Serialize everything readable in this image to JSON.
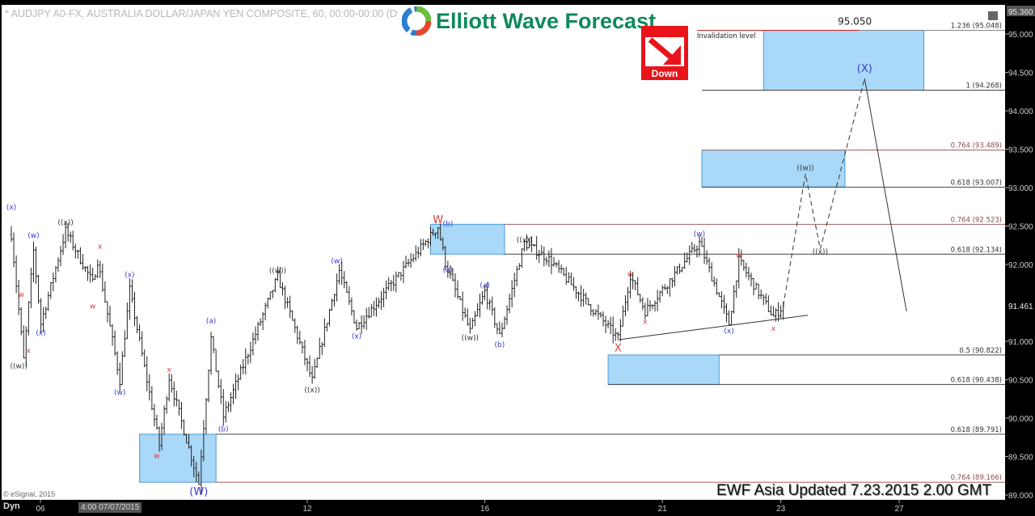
{
  "window": {
    "title": "* AUDJPY A0-FX, AUSTRALIA DOLLAR/JAPAN YEN COMPOSITE, 60, 00:00-00:00 (Dy",
    "logo_text": "Elliott Wave Forecast",
    "down_badge": "Down",
    "updated_text": "EWF Asia Updated 7.23.2015 2.00 GMT",
    "copyright": "© eSignal, 2015",
    "dyn_label": "Dyn",
    "cursor_date": "4:00 07/07/2015"
  },
  "colors": {
    "blue_label": "#3a3ad0",
    "red_label": "#e03a3a",
    "grey_label": "#333333",
    "box_fill": "#aad8f8",
    "box_border": "#4a9ad8",
    "fib_dark": "#444444",
    "fib_brown": "#a06060",
    "invalidation": "#d02020"
  },
  "chart_data": {
    "type": "ohlc-bar",
    "symbol": "AUDJPY",
    "interval": "60",
    "ylim": [
      89.0,
      95.36
    ],
    "y_ticks": [
      "95.000",
      "94.500",
      "94.000",
      "93.500",
      "93.000",
      "92.500",
      "92.000",
      "91.000",
      "90.500",
      "90.000",
      "89.500",
      "89.000"
    ],
    "y_tick_values": [
      95.0,
      94.5,
      94.0,
      93.5,
      93.0,
      92.5,
      92.0,
      91.0,
      90.5,
      90.0,
      89.5,
      89.0
    ],
    "price_tags": [
      {
        "label": "95.360",
        "value": 95.36
      },
      {
        "label": "91.461",
        "value": 91.461
      }
    ],
    "x_ticks": [
      {
        "label": "06",
        "t": "2015-07-06 12:00"
      },
      {
        "label": "12",
        "t": "2015-07-13 00:00"
      },
      {
        "label": "16",
        "t": "2015-07-16 00:00"
      },
      {
        "label": "21",
        "t": "2015-07-21 00:00"
      },
      {
        "label": "23",
        "t": "2015-07-23 00:00"
      },
      {
        "label": "27",
        "t": "2015-07-27 00:00"
      }
    ],
    "price_swings": [
      [
        "2015-07-06 00:00",
        92.39
      ],
      [
        "2015-07-06 05:00",
        90.76
      ],
      [
        "2015-07-06 09:00",
        92.18
      ],
      [
        "2015-07-06 12:00",
        91.23
      ],
      [
        "2015-07-06 22:00",
        92.44
      ],
      [
        "2015-07-07 09:00",
        91.76
      ],
      [
        "2015-07-07 11:00",
        92.05
      ],
      [
        "2015-07-07 20:00",
        90.49
      ],
      [
        "2015-07-08 00:00",
        91.67
      ],
      [
        "2015-07-08 12:00",
        89.65
      ],
      [
        "2015-07-08 16:00",
        90.53
      ],
      [
        "2015-07-09 04:00",
        89.15
      ],
      [
        "2015-07-09 09:00",
        91.04
      ],
      [
        "2015-07-09 14:00",
        90.02
      ],
      [
        "2015-07-10 12:00",
        91.84
      ],
      [
        "2015-07-13 02:00",
        90.49
      ],
      [
        "2015-07-13 13:00",
        91.92
      ],
      [
        "2015-07-13 20:00",
        91.18
      ],
      [
        "2015-07-15 05:00",
        92.49
      ],
      [
        "2015-07-15 08:00",
        92.02
      ],
      [
        "2015-07-15 18:00",
        91.13
      ],
      [
        "2015-07-16 00:00",
        91.65
      ],
      [
        "2015-07-16 06:00",
        91.07
      ],
      [
        "2015-07-16 16:00",
        92.28
      ],
      [
        "2015-07-17 02:00",
        92.07
      ],
      [
        "2015-07-20 06:00",
        91.04
      ],
      [
        "2015-07-20 11:00",
        91.86
      ],
      [
        "2015-07-20 17:00",
        91.39
      ],
      [
        "2015-07-21 15:00",
        92.28
      ],
      [
        "2015-07-22 03:00",
        91.23
      ],
      [
        "2015-07-22 07:00",
        92.05
      ],
      [
        "2015-07-22 21:00",
        91.32
      ],
      [
        "2015-07-23 01:00",
        91.46
      ]
    ],
    "projection_path": {
      "dashed": [
        [
          "2015-07-23 01:00",
          91.46
        ],
        [
          "2015-07-23 10:00",
          93.18
        ],
        [
          "2015-07-23 16:00",
          92.2
        ],
        [
          "2015-07-24 10:00",
          94.42
        ]
      ],
      "solid": [
        [
          "2015-07-24 10:00",
          94.42
        ],
        [
          "2015-07-27 03:00",
          91.39
        ]
      ]
    },
    "trend_line": [
      [
        "2015-07-20 06:00",
        91.02
      ],
      [
        "2015-07-23 11:00",
        91.34
      ]
    ],
    "fib_levels": [
      {
        "label": "1.236 (95.048)",
        "value": 95.048,
        "from": "2015-07-21 14:00",
        "color": "invalidation"
      },
      {
        "label": "1 (94.268)",
        "value": 94.268,
        "from": "2015-07-21 16:00",
        "color": "fib_dark"
      },
      {
        "label": "0.764 (93.489)",
        "value": 93.489,
        "from": "2015-07-21 16:00",
        "color": "fib_brown"
      },
      {
        "label": "0.618 (93.007)",
        "value": 93.007,
        "from": "2015-07-21 16:00",
        "color": "fib_dark"
      },
      {
        "label": "0.764 (92.523)",
        "value": 92.523,
        "from": "2015-07-16 08:00",
        "color": "fib_brown"
      },
      {
        "label": "0.618 (92.134)",
        "value": 92.134,
        "from": "2015-07-16 08:00",
        "color": "fib_dark"
      },
      {
        "label": "0.5 (90.822)",
        "value": 90.822,
        "from": "2015-07-21 23:00",
        "color": "fib_dark"
      },
      {
        "label": "0.618 (90.438)",
        "value": 90.438,
        "from": "2015-07-20 02:00",
        "color": "fib_dark"
      },
      {
        "label": "0.618 (89.791)",
        "value": 89.791,
        "from": "2015-07-09 11:00",
        "color": "fib_dark"
      },
      {
        "label": "0.764 (89.166)",
        "value": 89.166,
        "from": "2015-07-09 11:00",
        "color": "fib_brown"
      }
    ],
    "target_boxes": [
      {
        "from": "2015-07-08 04:00",
        "to": "2015-07-09 11:00",
        "low": 89.166,
        "high": 89.791
      },
      {
        "from": "2015-07-15 02:00",
        "to": "2015-07-16 08:00",
        "low": 92.134,
        "high": 92.523
      },
      {
        "from": "2015-07-20 02:00",
        "to": "2015-07-21 23:00",
        "low": 90.438,
        "high": 90.822
      },
      {
        "from": "2015-07-21 16:00",
        "to": "2015-07-24 02:00",
        "low": 93.007,
        "high": 93.489
      },
      {
        "from": "2015-07-22 17:00",
        "to": "2015-07-27 10:00",
        "low": 94.268,
        "high": 95.048
      }
    ],
    "annotations": [
      {
        "text": "Invalidation level",
        "t": "2015-07-21 14:00",
        "price": 95.04,
        "kind": "note"
      },
      {
        "text": "95.050",
        "t": "2015-07-24 06:00",
        "price": 95.12,
        "kind": "value"
      }
    ],
    "wave_labels": [
      {
        "text": "(x)",
        "t": "2015-07-06 00:00",
        "price": 92.76,
        "c": "blue_label"
      },
      {
        "text": "(w)",
        "t": "2015-07-06 09:00",
        "price": 92.39,
        "c": "blue_label"
      },
      {
        "text": "((x))",
        "t": "2015-07-06 22:00",
        "price": 92.56,
        "c": "grey_label"
      },
      {
        "text": "w",
        "t": "2015-07-06 04:00",
        "price": 91.62,
        "c": "red_label"
      },
      {
        "text": "x",
        "t": "2015-07-06 07:00",
        "price": 90.89,
        "c": "red_label"
      },
      {
        "text": "(x)",
        "t": "2015-07-06 12:00",
        "price": 91.12,
        "c": "blue_label"
      },
      {
        "text": "((w))",
        "t": "2015-07-06 03:00",
        "price": 90.69,
        "c": "grey_label"
      },
      {
        "text": "x",
        "t": "2015-07-07 12:00",
        "price": 92.25,
        "c": "red_label"
      },
      {
        "text": "w",
        "t": "2015-07-07 09:00",
        "price": 91.47,
        "c": "red_label"
      },
      {
        "text": "(x)",
        "t": "2015-07-08 00:00",
        "price": 91.88,
        "c": "blue_label"
      },
      {
        "text": "(w)",
        "t": "2015-07-07 20:00",
        "price": 90.35,
        "c": "blue_label"
      },
      {
        "text": "x",
        "t": "2015-07-08 16:00",
        "price": 90.64,
        "c": "red_label"
      },
      {
        "text": "w",
        "t": "2015-07-08 11:00",
        "price": 89.52,
        "c": "red_label"
      },
      {
        "text": "(a)",
        "t": "2015-07-09 09:00",
        "price": 91.28,
        "c": "blue_label"
      },
      {
        "text": "(b)",
        "t": "2015-07-09 14:00",
        "price": 89.87,
        "c": "blue_label"
      },
      {
        "text": "(W)",
        "t": "2015-07-09 04:00",
        "price": 89.04,
        "c": "blue_label",
        "big": true
      },
      {
        "text": "((w))",
        "t": "2015-07-10 12:00",
        "price": 91.93,
        "c": "grey_label"
      },
      {
        "text": "((x))",
        "t": "2015-07-13 02:00",
        "price": 90.38,
        "c": "grey_label"
      },
      {
        "text": "(w)",
        "t": "2015-07-13 12:00",
        "price": 92.06,
        "c": "blue_label"
      },
      {
        "text": "(x)",
        "t": "2015-07-13 20:00",
        "price": 91.08,
        "c": "blue_label"
      },
      {
        "text": "W",
        "t": "2015-07-15 05:00",
        "price": 92.58,
        "c": "red_label",
        "big": true
      },
      {
        "text": "(b)",
        "t": "2015-07-15 09:00",
        "price": 92.54,
        "c": "blue_label"
      },
      {
        "text": "(a)",
        "t": "2015-07-15 09:00",
        "price": 91.94,
        "c": "blue_label"
      },
      {
        "text": "((x))",
        "t": "2015-07-16 16:00",
        "price": 92.33,
        "c": "grey_label"
      },
      {
        "text": "(a)",
        "t": "2015-07-16 00:00",
        "price": 91.74,
        "c": "blue_label"
      },
      {
        "text": "((w))",
        "t": "2015-07-15 18:00",
        "price": 91.06,
        "c": "grey_label"
      },
      {
        "text": "(b)",
        "t": "2015-07-16 06:00",
        "price": 90.97,
        "c": "blue_label"
      },
      {
        "text": "w",
        "t": "2015-07-20 11:00",
        "price": 91.89,
        "c": "red_label"
      },
      {
        "text": "x",
        "t": "2015-07-20 17:00",
        "price": 91.27,
        "c": "red_label"
      },
      {
        "text": "X",
        "t": "2015-07-20 06:00",
        "price": 90.91,
        "c": "red_label",
        "big": true
      },
      {
        "text": "(w)",
        "t": "2015-07-21 15:00",
        "price": 92.41,
        "c": "blue_label"
      },
      {
        "text": "w",
        "t": "2015-07-22 07:00",
        "price": 92.13,
        "c": "red_label"
      },
      {
        "text": "(x)",
        "t": "2015-07-22 03:00",
        "price": 91.15,
        "c": "blue_label"
      },
      {
        "text": "x",
        "t": "2015-07-22 21:00",
        "price": 91.18,
        "c": "red_label"
      },
      {
        "text": "((w))",
        "t": "2015-07-23 10:00",
        "price": 93.27,
        "c": "grey_label"
      },
      {
        "text": "((x))",
        "t": "2015-07-23 16:00",
        "price": 92.18,
        "c": "grey_label"
      },
      {
        "text": "(X)",
        "t": "2015-07-24 10:00",
        "price": 94.55,
        "c": "blue_label",
        "big": true
      }
    ]
  }
}
